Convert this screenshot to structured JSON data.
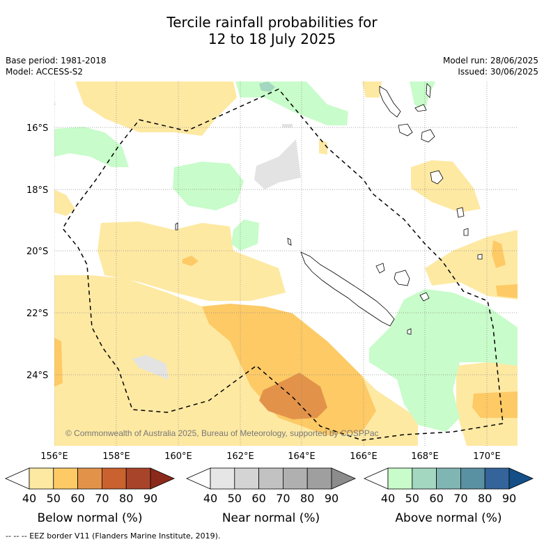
{
  "title_line1": "Tercile rainfall probabilities for",
  "title_line2": "12 to 18 July 2025",
  "meta_left": [
    "Base period: 1981-2018",
    "Model: ACCESS-S2"
  ],
  "meta_right": [
    "Model run: 28/06/2025",
    "Issued: 30/06/2025"
  ],
  "lat_labels": [
    "16°S",
    "18°S",
    "20°S",
    "22°S",
    "24°S"
  ],
  "lon_labels": [
    "156°E",
    "158°E",
    "160°E",
    "162°E",
    "164°E",
    "166°E",
    "168°E",
    "170°E"
  ],
  "copyright": "© Commonwealth of Australia 2025, Bureau of Meteorology, supported by COSPPac",
  "colorbars": [
    {
      "title": "Below normal (%)",
      "ticks": [
        "40",
        "50",
        "60",
        "70",
        "80",
        "90"
      ],
      "colors": [
        "#ffffff",
        "#fee9a3",
        "#fdca66",
        "#e29349",
        "#c9622e",
        "#a8442a",
        "#8b2a1a"
      ]
    },
    {
      "title": "Near normal (%)",
      "ticks": [
        "40",
        "50",
        "60",
        "70",
        "80",
        "90"
      ],
      "colors": [
        "#ffffff",
        "#e6e6e6",
        "#d4d4d4",
        "#c2c2c2",
        "#b0b0b0",
        "#9f9f9f",
        "#8c8c8c"
      ]
    },
    {
      "title": "Above normal (%)",
      "ticks": [
        "40",
        "50",
        "60",
        "70",
        "80",
        "90"
      ],
      "colors": [
        "#ffffff",
        "#c8fcca",
        "#a3d7bf",
        "#7fb5b2",
        "#5a91a2",
        "#34649a",
        "#144f87"
      ]
    }
  ],
  "footer": "-- -- -- EEZ border V11 (Flanders Marine Institute, 2019)."
}
